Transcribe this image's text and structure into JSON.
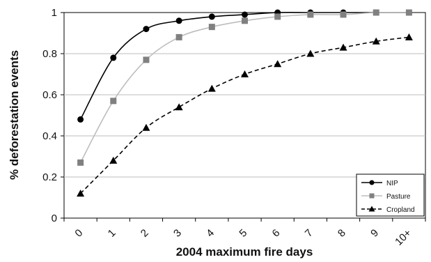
{
  "chart_data": {
    "type": "line",
    "title": "",
    "xlabel": "2004 maximum fire days",
    "ylabel": "% deforestation events",
    "categories": [
      "0",
      "1",
      "2",
      "3",
      "4",
      "5",
      "6",
      "7",
      "8",
      "9",
      "10+"
    ],
    "y_ticks": [
      "0",
      "0.2",
      "0.4",
      "0.6",
      "0.8",
      "1"
    ],
    "ylim": [
      0,
      1
    ],
    "grid": "horizontal",
    "legend_position": "bottom-right",
    "series": [
      {
        "name": "NIP",
        "values": [
          0.48,
          0.78,
          0.92,
          0.96,
          0.98,
          0.99,
          1.0,
          1.0,
          1.0,
          1.0,
          1.0
        ],
        "color": "#000000",
        "line": "solid",
        "marker": "circle"
      },
      {
        "name": "Pasture",
        "values": [
          0.27,
          0.57,
          0.77,
          0.88,
          0.93,
          0.96,
          0.98,
          0.99,
          0.99,
          1.0,
          1.0
        ],
        "color": "#bdbdbd",
        "marker_color": "#808080",
        "line": "solid",
        "marker": "square"
      },
      {
        "name": "Cropland",
        "values": [
          0.12,
          0.28,
          0.44,
          0.54,
          0.63,
          0.7,
          0.75,
          0.8,
          0.83,
          0.86,
          0.88
        ],
        "color": "#000000",
        "line": "dashed",
        "marker": "triangle"
      }
    ]
  }
}
